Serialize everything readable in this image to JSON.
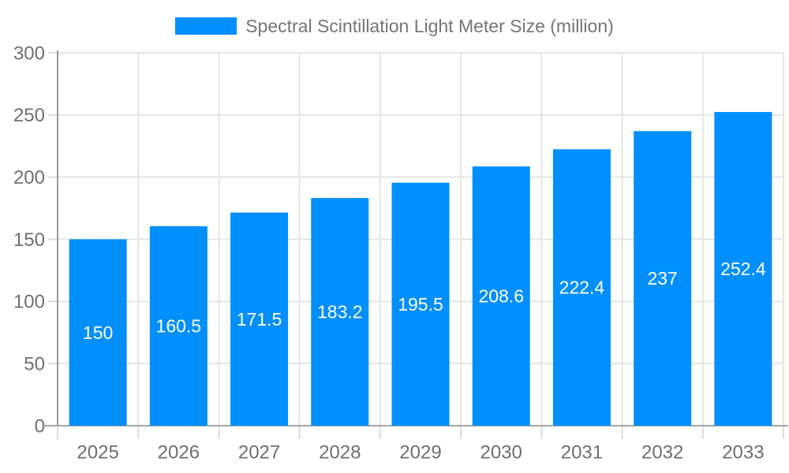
{
  "chart_data": {
    "type": "bar",
    "title": "Spectral Scintillation Light Meter Size (million)",
    "categories": [
      "2025",
      "2026",
      "2027",
      "2028",
      "2029",
      "2030",
      "2031",
      "2032",
      "2033"
    ],
    "series": [
      {
        "name": "Spectral Scintillation Light Meter Size (million)",
        "values": [
          150,
          160.5,
          171.5,
          183.2,
          195.5,
          208.6,
          222.4,
          237,
          252.4
        ]
      }
    ],
    "value_labels": [
      "150",
      "160.5",
      "171.5",
      "183.2",
      "195.5",
      "208.6",
      "222.4",
      "237",
      "252.4"
    ],
    "xlabel": "",
    "ylabel": "",
    "ylim": [
      0,
      300
    ],
    "yticks": [
      0,
      50,
      100,
      150,
      200,
      250,
      300
    ],
    "grid": true,
    "legend_position": "top",
    "colors": {
      "bar": "#008FFB",
      "value_label": "#ffffff",
      "axis_text": "#6f6f6f",
      "legend_text": "#757575",
      "gridline": "#e5e5e5",
      "tick": "#dcdcdc",
      "axis_line": "#a6a6a6",
      "y_axis_line": "#9a9a9a"
    }
  }
}
